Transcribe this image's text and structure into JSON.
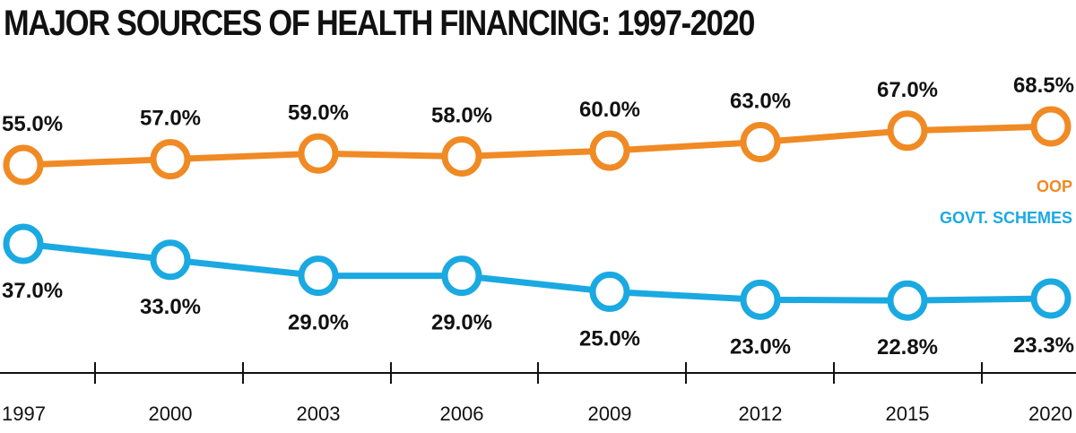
{
  "chart_data": {
    "type": "line",
    "title": "MAJOR SOURCES OF HEALTH FINANCING: 1997-2020",
    "categories": [
      "1997",
      "2000",
      "2003",
      "2006",
      "2009",
      "2012",
      "2015",
      "2020"
    ],
    "series": [
      {
        "name": "OOP",
        "color": "#F08A24",
        "values": [
          55.0,
          57.0,
          59.0,
          58.0,
          60.0,
          63.0,
          67.0,
          68.5
        ],
        "labels": [
          "55.0%",
          "57.0%",
          "59.0%",
          "58.0%",
          "60.0%",
          "63.0%",
          "67.0%",
          "68.5%"
        ]
      },
      {
        "name": "GOVT. SCHEMES",
        "color": "#1BA9E1",
        "values": [
          37.0,
          33.0,
          29.0,
          29.0,
          25.0,
          23.0,
          22.8,
          23.3
        ],
        "labels": [
          "37.0%",
          "33.0%",
          "29.0%",
          "29.0%",
          "25.0%",
          "23.0%",
          "22.8%",
          "23.3%"
        ]
      }
    ],
    "xlabel": "",
    "ylabel": "",
    "legend_position": "right"
  }
}
